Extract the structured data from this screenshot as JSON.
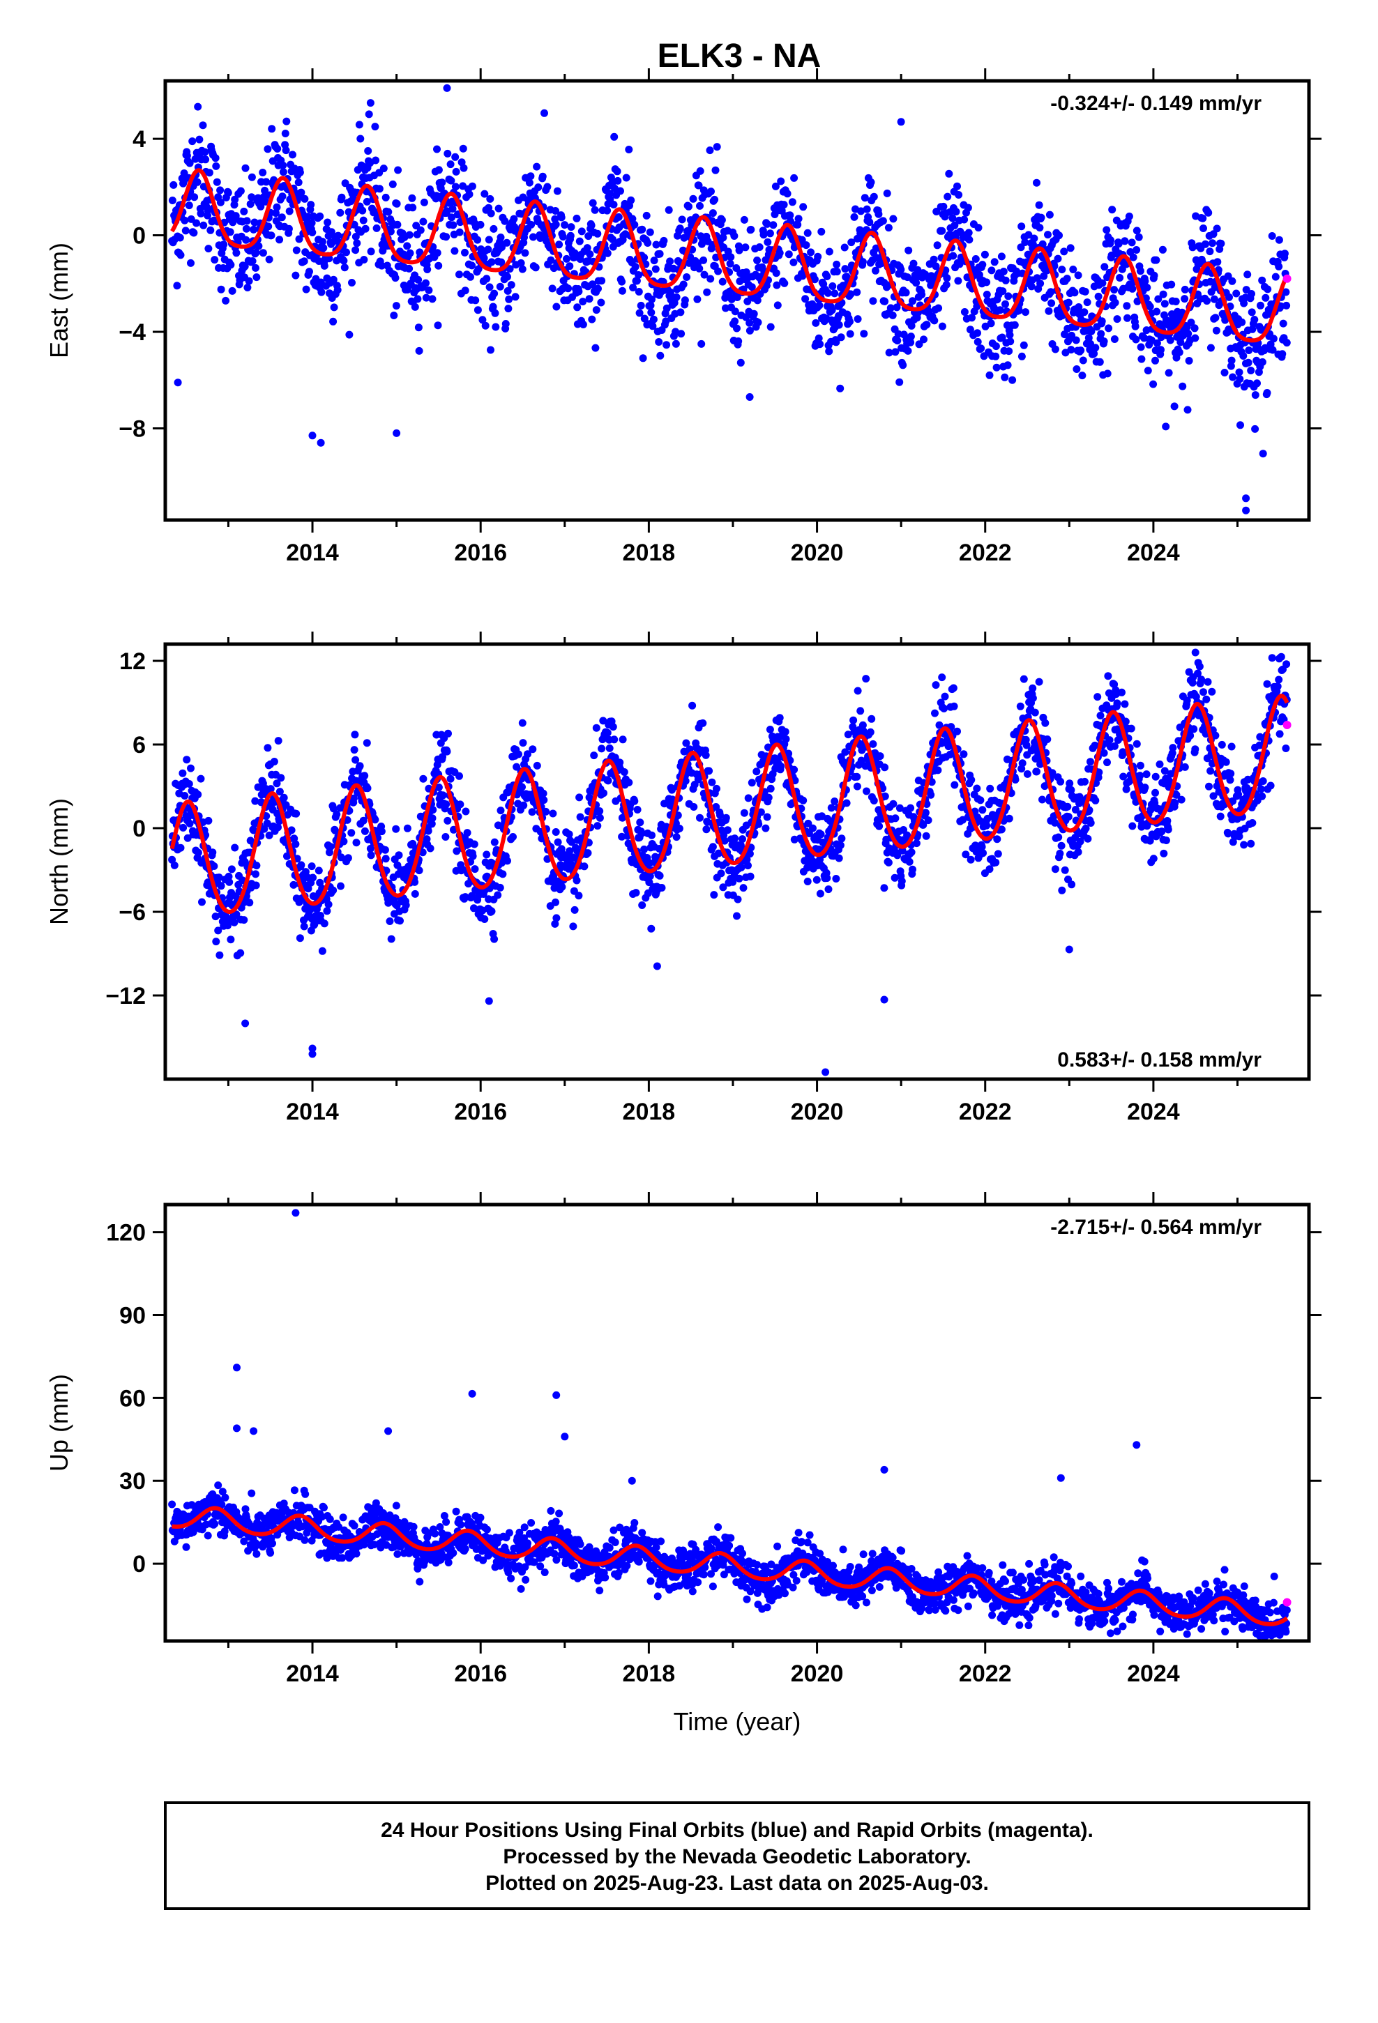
{
  "title": "ELK3 - NA",
  "footer": {
    "lines": [
      "24 Hour Positions Using Final Orbits (blue) and Rapid Orbits (magenta).",
      "Processed by the Nevada Geodetic Laboratory.",
      "Plotted on 2025-Aug-23. Last data on 2025-Aug-03."
    ]
  },
  "colors": {
    "final_points": "#0000ff",
    "rapid_points": "#ff00ff",
    "model_line": "#ff0000",
    "frame": "#000000"
  },
  "chart_data": [
    {
      "type": "scatter",
      "ylabel": "East (mm)",
      "xlabel": "",
      "rate_label": "-0.324+/- 0.149 mm/yr",
      "rate_position": "top-right",
      "xlim": [
        2012.25,
        2025.85
      ],
      "ylim": [
        -11.8,
        6.4
      ],
      "xticks": [
        2014,
        2016,
        2018,
        2020,
        2022,
        2024
      ],
      "yticks": [
        4,
        0,
        -4,
        -8
      ],
      "start_year": 2012.33,
      "end_year": 2025.59,
      "scatter_spread_mm": 1.3,
      "model": {
        "offset_mm_at_start": 1.0,
        "trend_mm_per_yr": -0.324,
        "annual_amplitude_mm": 1.5,
        "peak_phase_year_fraction": 0.65,
        "semiannual_amplitude_mm": 0.3
      },
      "outliers": [
        {
          "x": 2012.4,
          "y": -6.1
        },
        {
          "x": 2014.0,
          "y": -8.3
        },
        {
          "x": 2014.1,
          "y": -8.6
        },
        {
          "x": 2015.0,
          "y": -8.2
        },
        {
          "x": 2015.6,
          "y": 6.1
        },
        {
          "x": 2019.2,
          "y": -6.7
        },
        {
          "x": 2021.0,
          "y": 4.7
        },
        {
          "x": 2025.1,
          "y": -10.9
        },
        {
          "x": 2025.1,
          "y": -11.4
        }
      ],
      "rapid_points": [
        {
          "x": 2025.59,
          "y": -1.8
        }
      ]
    },
    {
      "type": "scatter",
      "ylabel": "North (mm)",
      "xlabel": "",
      "rate_label": "0.583+/- 0.158 mm/yr",
      "rate_position": "bottom-right",
      "xlim": [
        2012.25,
        2025.85
      ],
      "ylim": [
        -18,
        13.2
      ],
      "xticks": [
        2014,
        2016,
        2018,
        2020,
        2022,
        2024
      ],
      "yticks": [
        12,
        6,
        0,
        -6,
        -12
      ],
      "start_year": 2012.33,
      "end_year": 2025.59,
      "scatter_spread_mm": 1.6,
      "model": {
        "offset_mm_at_start": -2.7,
        "trend_mm_per_yr": 0.583,
        "annual_amplitude_mm": 4.1,
        "peak_phase_year_fraction": 0.52,
        "semiannual_amplitude_mm": 0.4
      },
      "outliers": [
        {
          "x": 2013.2,
          "y": -14.0
        },
        {
          "x": 2014.0,
          "y": -15.8
        },
        {
          "x": 2014.0,
          "y": -16.2
        },
        {
          "x": 2016.1,
          "y": -12.4
        },
        {
          "x": 2018.1,
          "y": -9.9
        },
        {
          "x": 2020.1,
          "y": -17.5
        },
        {
          "x": 2020.8,
          "y": -12.3
        },
        {
          "x": 2023.0,
          "y": -8.7
        },
        {
          "x": 2024.5,
          "y": 12.6
        }
      ],
      "rapid_points": [
        {
          "x": 2025.59,
          "y": 7.4
        }
      ]
    },
    {
      "type": "scatter",
      "ylabel": "Up (mm)",
      "xlabel": "Time (year)",
      "rate_label": "-2.715+/- 0.564 mm/yr",
      "rate_position": "top-right",
      "xlim": [
        2012.25,
        2025.85
      ],
      "ylim": [
        -28,
        130
      ],
      "xticks": [
        2014,
        2016,
        2018,
        2020,
        2022,
        2024
      ],
      "yticks": [
        120,
        90,
        60,
        30,
        0
      ],
      "start_year": 2012.33,
      "end_year": 2025.59,
      "scatter_spread_mm": 4.0,
      "model": {
        "offset_mm_at_start": 17.0,
        "trend_mm_per_yr": -2.715,
        "annual_amplitude_mm": 4.0,
        "peak_phase_year_fraction": 0.85,
        "semiannual_amplitude_mm": 0.5
      },
      "outliers": [
        {
          "x": 2013.1,
          "y": 71.0
        },
        {
          "x": 2013.1,
          "y": 49.0
        },
        {
          "x": 2013.3,
          "y": 48.0
        },
        {
          "x": 2013.8,
          "y": 127.0
        },
        {
          "x": 2014.9,
          "y": 48.0
        },
        {
          "x": 2015.9,
          "y": 61.5
        },
        {
          "x": 2016.9,
          "y": 61.0
        },
        {
          "x": 2017.0,
          "y": 46.0
        },
        {
          "x": 2017.8,
          "y": 30.0
        },
        {
          "x": 2020.8,
          "y": 34.0
        },
        {
          "x": 2022.9,
          "y": 31.0
        },
        {
          "x": 2023.8,
          "y": 43.0
        }
      ],
      "rapid_points": [
        {
          "x": 2025.59,
          "y": -14.0
        }
      ]
    }
  ]
}
